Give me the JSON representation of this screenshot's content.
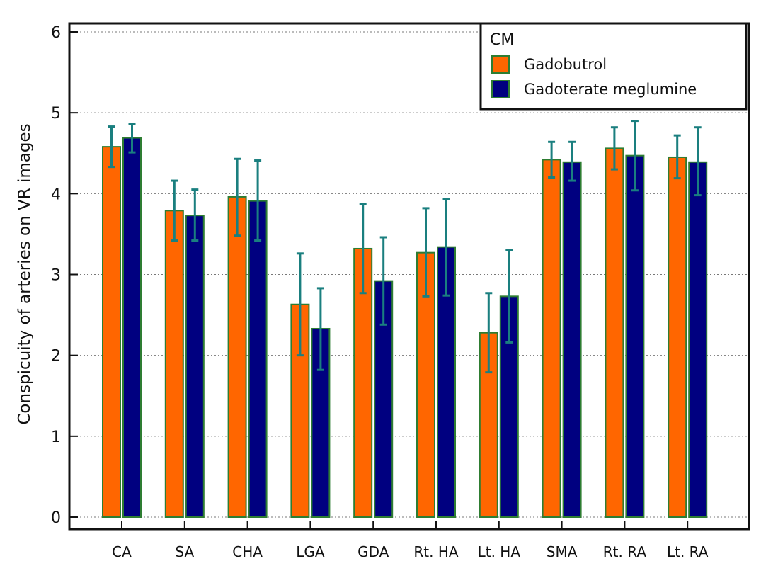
{
  "chart_data": {
    "type": "bar",
    "title": "",
    "xlabel": "",
    "ylabel": "Conspicuity of arteries on VR images",
    "ylim": [
      0,
      6
    ],
    "yticks": [
      "0",
      "1",
      "2",
      "3",
      "4",
      "5",
      "6"
    ],
    "grid": "horizontal dotted",
    "categories": [
      "CA",
      "SA",
      "CHA",
      "LGA",
      "GDA",
      "Rt. HA",
      "Lt. HA",
      "SMA",
      "Rt. RA",
      "Lt. RA"
    ],
    "legend": {
      "title": "CM",
      "position": "top-right"
    },
    "series": [
      {
        "name": "Gadobutrol",
        "color": "#ff6600",
        "values": [
          4.58,
          3.79,
          3.96,
          2.63,
          3.32,
          3.27,
          2.28,
          4.42,
          4.56,
          4.45
        ],
        "error_low": [
          4.33,
          3.42,
          3.48,
          2.0,
          2.77,
          2.73,
          1.79,
          4.2,
          4.3,
          4.19
        ],
        "error_high": [
          4.83,
          4.16,
          4.43,
          3.26,
          3.87,
          3.82,
          2.77,
          4.64,
          4.82,
          4.72
        ]
      },
      {
        "name": "Gadoterate meglumine",
        "color": "#000080",
        "values": [
          4.69,
          3.73,
          3.91,
          2.33,
          2.92,
          3.34,
          2.73,
          4.39,
          4.47,
          4.39
        ],
        "error_low": [
          4.51,
          3.42,
          3.42,
          1.82,
          2.38,
          2.74,
          2.16,
          4.16,
          4.04,
          3.98
        ],
        "error_high": [
          4.86,
          4.05,
          4.41,
          2.83,
          3.46,
          3.93,
          3.3,
          4.64,
          4.9,
          4.82
        ]
      }
    ],
    "bar_outline_color": "#2e7d32",
    "error_bar_color": "#1a7f7f"
  }
}
